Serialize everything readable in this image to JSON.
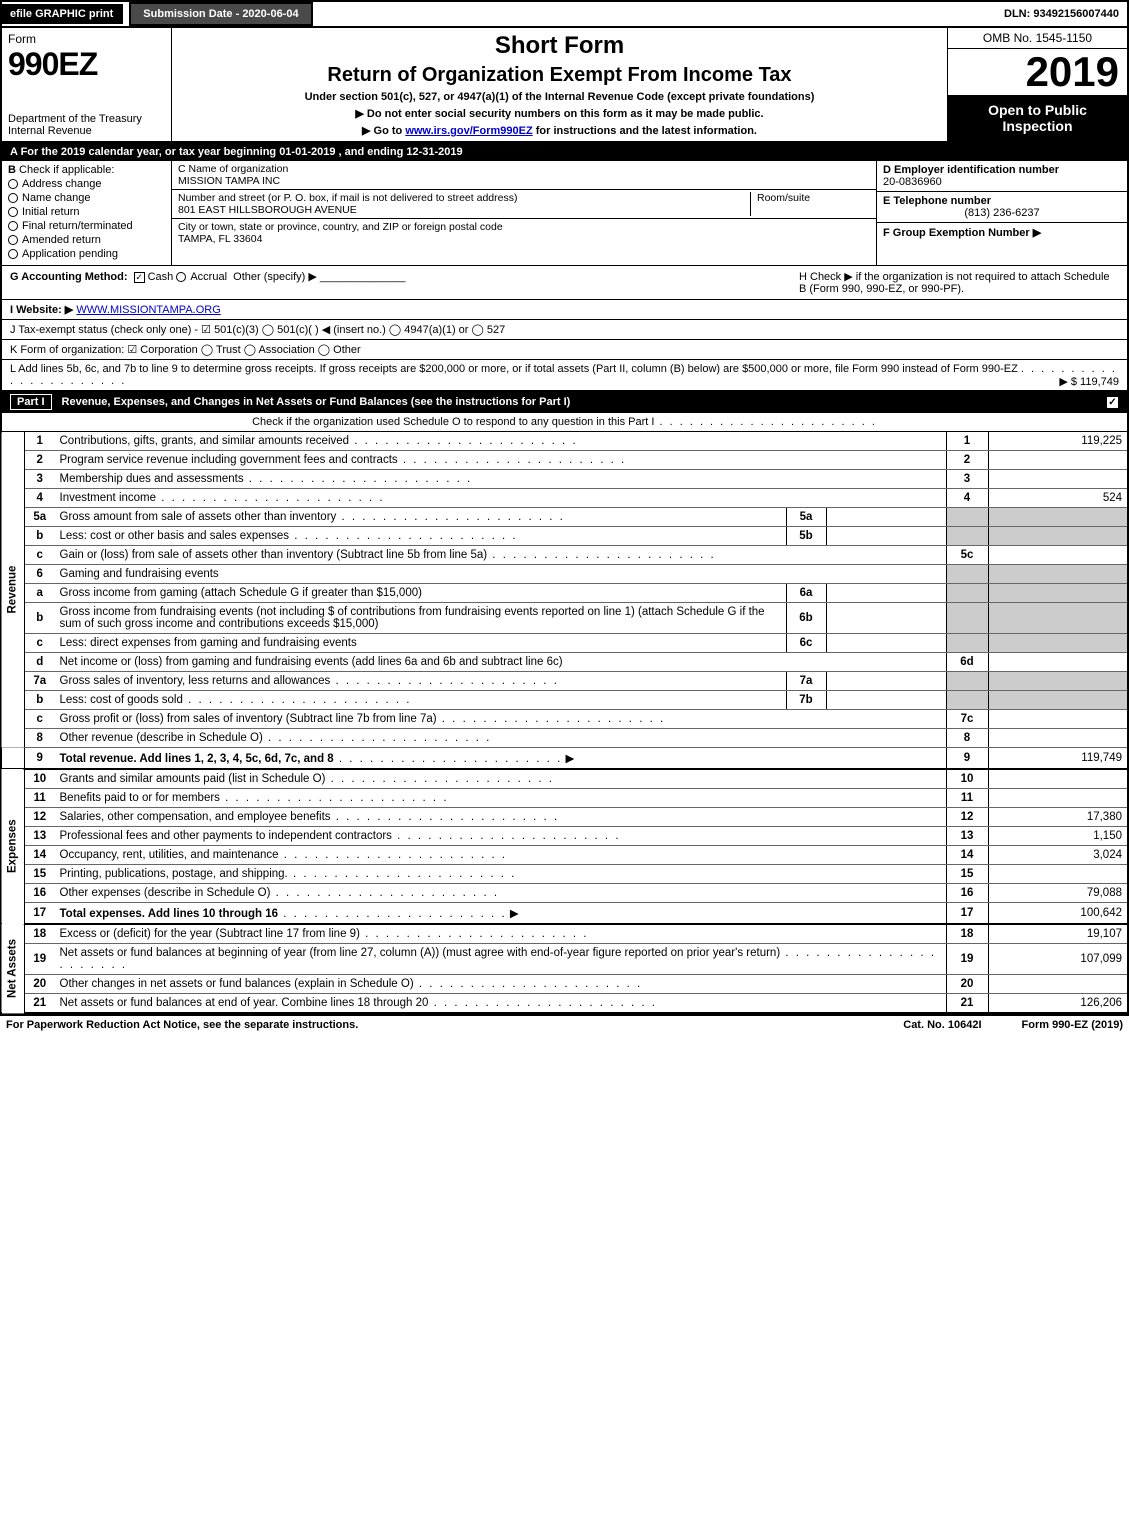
{
  "topbar": {
    "efile": "efile GRAPHIC print",
    "submission": "Submission Date - 2020-06-04",
    "dln": "DLN: 93492156007440"
  },
  "header": {
    "form_label": "Form",
    "form_number": "990EZ",
    "dept1": "Department of the Treasury",
    "dept2": "Internal Revenue",
    "short_form": "Short Form",
    "title": "Return of Organization Exempt From Income Tax",
    "under": "Under section 501(c), 527, or 4947(a)(1) of the Internal Revenue Code (except private foundations)",
    "notice1": "▶ Do not enter social security numbers on this form as it may be made public.",
    "notice2_pre": "▶ Go to ",
    "notice2_link": "www.irs.gov/Form990EZ",
    "notice2_post": " for instructions and the latest information.",
    "omb": "OMB No. 1545-1150",
    "year": "2019",
    "open": "Open to Public Inspection"
  },
  "period": "A  For the 2019 calendar year, or tax year beginning 01-01-2019 , and ending 12-31-2019",
  "section_b": {
    "label": "B",
    "check_if": "Check if applicable:",
    "addr_change": "Address change",
    "name_change": "Name change",
    "initial": "Initial return",
    "final": "Final return/terminated",
    "amended": "Amended return",
    "pending": "Application pending"
  },
  "section_c": {
    "c_label": "C Name of organization",
    "org_name": "MISSION TAMPA INC",
    "street_label": "Number and street (or P. O. box, if mail is not delivered to street address)",
    "street": "801 EAST HILLSBOROUGH AVENUE",
    "room_label": "Room/suite",
    "city_label": "City or town, state or province, country, and ZIP or foreign postal code",
    "city": "TAMPA, FL  33604"
  },
  "section_d": {
    "d_label": "D Employer identification number",
    "ein": "20-0836960",
    "e_label": "E Telephone number",
    "phone": "(813) 236-6237",
    "f_label": "F Group Exemption Number  ▶"
  },
  "row_g": {
    "g_label": "G Accounting Method:",
    "cash": "Cash",
    "accrual": "Accrual",
    "other": "Other (specify) ▶",
    "h_text": "H  Check ▶     if the organization is not required to attach Schedule B (Form 990, 990-EZ, or 990-PF)."
  },
  "row_i": {
    "label": "I Website: ▶",
    "url": "WWW.MISSIONTAMPA.ORG"
  },
  "row_j": "J Tax-exempt status (check only one) -  ☑ 501(c)(3)  ◯ 501(c)(  ) ◀ (insert no.)  ◯ 4947(a)(1) or  ◯ 527",
  "row_k": "K Form of organization:   ☑ Corporation   ◯ Trust   ◯ Association   ◯ Other",
  "row_l": {
    "text": "L Add lines 5b, 6c, and 7b to line 9 to determine gross receipts. If gross receipts are $200,000 or more, or if total assets (Part II, column (B) below) are $500,000 or more, file Form 990 instead of Form 990-EZ",
    "amount": "▶ $ 119,749"
  },
  "part1": {
    "label": "Part I",
    "title": "Revenue, Expenses, and Changes in Net Assets or Fund Balances (see the instructions for Part I)",
    "sub": "Check if the organization used Schedule O to respond to any question in this Part I"
  },
  "side_labels": {
    "revenue": "Revenue",
    "expenses": "Expenses",
    "netassets": "Net Assets"
  },
  "lines": {
    "l1": {
      "no": "1",
      "desc": "Contributions, gifts, grants, and similar amounts received",
      "num": "1",
      "amt": "119,225"
    },
    "l2": {
      "no": "2",
      "desc": "Program service revenue including government fees and contracts",
      "num": "2",
      "amt": ""
    },
    "l3": {
      "no": "3",
      "desc": "Membership dues and assessments",
      "num": "3",
      "amt": ""
    },
    "l4": {
      "no": "4",
      "desc": "Investment income",
      "num": "4",
      "amt": "524"
    },
    "l5a": {
      "no": "5a",
      "desc": "Gross amount from sale of assets other than inventory",
      "sub": "5a"
    },
    "l5b": {
      "no": "b",
      "desc": "Less: cost or other basis and sales expenses",
      "sub": "5b"
    },
    "l5c": {
      "no": "c",
      "desc": "Gain or (loss) from sale of assets other than inventory (Subtract line 5b from line 5a)",
      "num": "5c",
      "amt": ""
    },
    "l6": {
      "no": "6",
      "desc": "Gaming and fundraising events"
    },
    "l6a": {
      "no": "a",
      "desc": "Gross income from gaming (attach Schedule G if greater than $15,000)",
      "sub": "6a"
    },
    "l6b": {
      "no": "b",
      "desc": "Gross income from fundraising events (not including $                  of contributions from fundraising events reported on line 1) (attach Schedule G if the sum of such gross income and contributions exceeds $15,000)",
      "sub": "6b"
    },
    "l6c": {
      "no": "c",
      "desc": "Less: direct expenses from gaming and fundraising events",
      "sub": "6c"
    },
    "l6d": {
      "no": "d",
      "desc": "Net income or (loss) from gaming and fundraising events (add lines 6a and 6b and subtract line 6c)",
      "num": "6d",
      "amt": ""
    },
    "l7a": {
      "no": "7a",
      "desc": "Gross sales of inventory, less returns and allowances",
      "sub": "7a"
    },
    "l7b": {
      "no": "b",
      "desc": "Less: cost of goods sold",
      "sub": "7b"
    },
    "l7c": {
      "no": "c",
      "desc": "Gross profit or (loss) from sales of inventory (Subtract line 7b from line 7a)",
      "num": "7c",
      "amt": ""
    },
    "l8": {
      "no": "8",
      "desc": "Other revenue (describe in Schedule O)",
      "num": "8",
      "amt": ""
    },
    "l9": {
      "no": "9",
      "desc": "Total revenue. Add lines 1, 2, 3, 4, 5c, 6d, 7c, and 8",
      "num": "9",
      "amt": "119,749",
      "bold": true
    },
    "l10": {
      "no": "10",
      "desc": "Grants and similar amounts paid (list in Schedule O)",
      "num": "10",
      "amt": ""
    },
    "l11": {
      "no": "11",
      "desc": "Benefits paid to or for members",
      "num": "11",
      "amt": ""
    },
    "l12": {
      "no": "12",
      "desc": "Salaries, other compensation, and employee benefits",
      "num": "12",
      "amt": "17,380"
    },
    "l13": {
      "no": "13",
      "desc": "Professional fees and other payments to independent contractors",
      "num": "13",
      "amt": "1,150"
    },
    "l14": {
      "no": "14",
      "desc": "Occupancy, rent, utilities, and maintenance",
      "num": "14",
      "amt": "3,024"
    },
    "l15": {
      "no": "15",
      "desc": "Printing, publications, postage, and shipping.",
      "num": "15",
      "amt": ""
    },
    "l16": {
      "no": "16",
      "desc": "Other expenses (describe in Schedule O)",
      "num": "16",
      "amt": "79,088"
    },
    "l17": {
      "no": "17",
      "desc": "Total expenses. Add lines 10 through 16",
      "num": "17",
      "amt": "100,642",
      "bold": true
    },
    "l18": {
      "no": "18",
      "desc": "Excess or (deficit) for the year (Subtract line 17 from line 9)",
      "num": "18",
      "amt": "19,107"
    },
    "l19": {
      "no": "19",
      "desc": "Net assets or fund balances at beginning of year (from line 27, column (A)) (must agree with end-of-year figure reported on prior year's return)",
      "num": "19",
      "amt": "107,099"
    },
    "l20": {
      "no": "20",
      "desc": "Other changes in net assets or fund balances (explain in Schedule O)",
      "num": "20",
      "amt": ""
    },
    "l21": {
      "no": "21",
      "desc": "Net assets or fund balances at end of year. Combine lines 18 through 20",
      "num": "21",
      "amt": "126,206"
    }
  },
  "footer": {
    "left": "For Paperwork Reduction Act Notice, see the separate instructions.",
    "center": "Cat. No. 10642I",
    "right": "Form 990-EZ (2019)"
  },
  "colors": {
    "black": "#000000",
    "white": "#ffffff",
    "grey_fill": "#cccccc",
    "darkbar": "#4a4a4a",
    "link": "#0000cc"
  }
}
